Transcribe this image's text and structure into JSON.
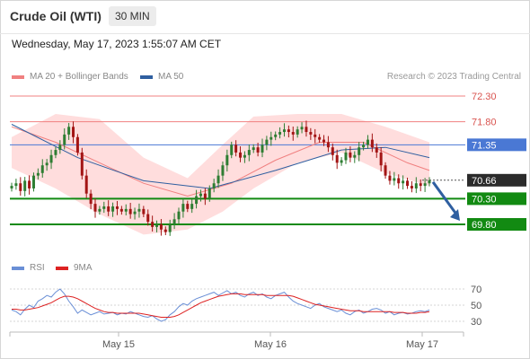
{
  "header": {
    "instrument": "Crude Oil (WTI)",
    "timeframe": "30 MIN",
    "datetime": "Wednesday, May 17, 2023 1:55:07 AM CET"
  },
  "legend_main": [
    {
      "label": "MA 20 + Bollinger Bands",
      "color": "#f08080"
    },
    {
      "label": "MA 50",
      "color": "#2f5fa0"
    }
  ],
  "legend_rsi": [
    {
      "label": "RSI",
      "color": "#6a8fd6"
    },
    {
      "label": "9MA",
      "color": "#dd2222"
    }
  ],
  "copyright": "Research © 2023 Trading Central",
  "colors": {
    "candle_up": "#2e7d32",
    "candle_down": "#a31515",
    "resistance": "#f08080",
    "pivot": "#4a78d4",
    "support": "#128a12",
    "bollinger": "#ffd9d9",
    "ma20": "#f08080",
    "ma50": "#2f5fa0",
    "price_box": "#2b2b2b",
    "arrow": "#2f5fa0"
  },
  "chart_data": [
    {
      "type": "candlestick",
      "title": "Crude Oil (WTI) 30 MIN",
      "x_labels": [
        "May 15",
        "May 16",
        "May 17"
      ],
      "y_ticks": [
        72.3,
        71.8,
        71.35,
        70.66,
        70.3,
        69.8
      ],
      "ylim": [
        69.5,
        72.45
      ],
      "levels": [
        {
          "label": "72.30",
          "value": 72.3,
          "kind": "resistance"
        },
        {
          "label": "71.80",
          "value": 71.8,
          "kind": "resistance"
        },
        {
          "label": "71.35",
          "value": 71.35,
          "kind": "pivot"
        },
        {
          "label": "70.66",
          "value": 70.66,
          "kind": "last_price"
        },
        {
          "label": "70.30",
          "value": 70.3,
          "kind": "support"
        },
        {
          "label": "69.80",
          "value": 69.8,
          "kind": "support"
        }
      ],
      "closes": [
        70.55,
        70.6,
        70.45,
        70.65,
        70.5,
        70.75,
        70.8,
        70.95,
        71.0,
        71.15,
        71.25,
        71.35,
        71.55,
        71.7,
        71.5,
        71.2,
        70.75,
        70.4,
        70.2,
        70.05,
        70.1,
        70.15,
        70.05,
        70.15,
        70.1,
        70.05,
        70.1,
        70.0,
        70.05,
        70.1,
        70.0,
        69.85,
        69.75,
        69.8,
        69.7,
        69.65,
        69.8,
        69.9,
        70.05,
        70.2,
        70.1,
        70.2,
        70.35,
        70.4,
        70.3,
        70.5,
        70.6,
        70.75,
        70.95,
        71.15,
        71.35,
        71.2,
        71.1,
        71.15,
        71.25,
        71.3,
        71.2,
        71.35,
        71.45,
        71.5,
        71.55,
        71.6,
        71.65,
        71.6,
        71.55,
        71.65,
        71.7,
        71.6,
        71.55,
        71.5,
        71.45,
        71.4,
        71.3,
        71.15,
        71.0,
        71.05,
        71.2,
        71.1,
        71.15,
        71.3,
        71.35,
        71.45,
        71.3,
        71.2,
        70.95,
        70.75,
        70.65,
        70.7,
        70.6,
        70.65,
        70.55,
        70.5,
        70.6,
        70.55,
        70.6,
        70.66
      ],
      "ma20": [
        [
          0,
          71.7
        ],
        [
          10,
          71.4
        ],
        [
          20,
          71.0
        ],
        [
          30,
          70.6
        ],
        [
          40,
          70.35
        ],
        [
          50,
          70.6
        ],
        [
          60,
          71.05
        ],
        [
          70,
          71.4
        ],
        [
          80,
          71.4
        ],
        [
          90,
          71.0
        ],
        [
          95,
          70.85
        ]
      ],
      "ma50": [
        [
          0,
          71.75
        ],
        [
          15,
          71.1
        ],
        [
          30,
          70.65
        ],
        [
          45,
          70.5
        ],
        [
          60,
          70.85
        ],
        [
          75,
          71.25
        ],
        [
          85,
          71.3
        ],
        [
          95,
          71.1
        ]
      ],
      "bollinger_upper": [
        [
          0,
          71.5
        ],
        [
          10,
          71.95
        ],
        [
          20,
          71.85
        ],
        [
          30,
          71.1
        ],
        [
          40,
          70.7
        ],
        [
          48,
          71.35
        ],
        [
          55,
          71.9
        ],
        [
          65,
          71.95
        ],
        [
          75,
          71.95
        ],
        [
          85,
          71.7
        ],
        [
          95,
          71.4
        ]
      ],
      "bollinger_lower": [
        [
          0,
          70.9
        ],
        [
          10,
          70.5
        ],
        [
          20,
          70.0
        ],
        [
          30,
          69.6
        ],
        [
          40,
          69.7
        ],
        [
          48,
          70.05
        ],
        [
          55,
          70.5
        ],
        [
          65,
          71.0
        ],
        [
          75,
          71.2
        ],
        [
          85,
          70.8
        ],
        [
          95,
          70.55
        ]
      ],
      "projection": {
        "from": 70.66,
        "to": 69.8
      }
    },
    {
      "type": "line",
      "title": "RSI",
      "y_ticks": [
        70,
        50,
        30
      ],
      "ylim": [
        20,
        80
      ],
      "series": [
        {
          "name": "RSI",
          "values": [
            44,
            42,
            38,
            45,
            50,
            47,
            55,
            58,
            62,
            60,
            66,
            70,
            64,
            55,
            48,
            40,
            44,
            41,
            38,
            40,
            42,
            39,
            40,
            41,
            38,
            40,
            39,
            42,
            40,
            38,
            36,
            35,
            37,
            33,
            30,
            32,
            38,
            42,
            48,
            52,
            50,
            55,
            58,
            60,
            62,
            64,
            66,
            62,
            65,
            68,
            64,
            66,
            62,
            60,
            64,
            66,
            62,
            64,
            60,
            58,
            62,
            64,
            66,
            60,
            55,
            52,
            50,
            48,
            46,
            50,
            52,
            48,
            46,
            44,
            42,
            44,
            40,
            38,
            42,
            44,
            40,
            42,
            45,
            46,
            44,
            40,
            42,
            38,
            40,
            41,
            39,
            40,
            42,
            43,
            42,
            44
          ]
        },
        {
          "name": "9MA",
          "values": [
            45,
            45,
            44,
            44,
            45,
            46,
            47,
            49,
            51,
            53,
            56,
            59,
            61,
            61,
            60,
            58,
            55,
            52,
            49,
            46,
            44,
            42,
            41,
            41,
            40,
            40,
            40,
            40,
            40,
            40,
            39,
            38,
            37,
            36,
            35,
            35,
            35,
            36,
            38,
            41,
            44,
            47,
            50,
            53,
            55,
            57,
            59,
            61,
            62,
            63,
            64,
            64,
            64,
            63,
            63,
            63,
            63,
            63,
            62,
            62,
            62,
            62,
            62,
            62,
            61,
            59,
            57,
            55,
            53,
            51,
            50,
            49,
            48,
            47,
            46,
            45,
            44,
            43,
            43,
            43,
            42,
            42,
            42,
            42,
            42,
            42,
            42,
            41,
            41,
            41,
            40,
            40,
            40,
            41,
            41,
            42
          ]
        }
      ]
    }
  ]
}
